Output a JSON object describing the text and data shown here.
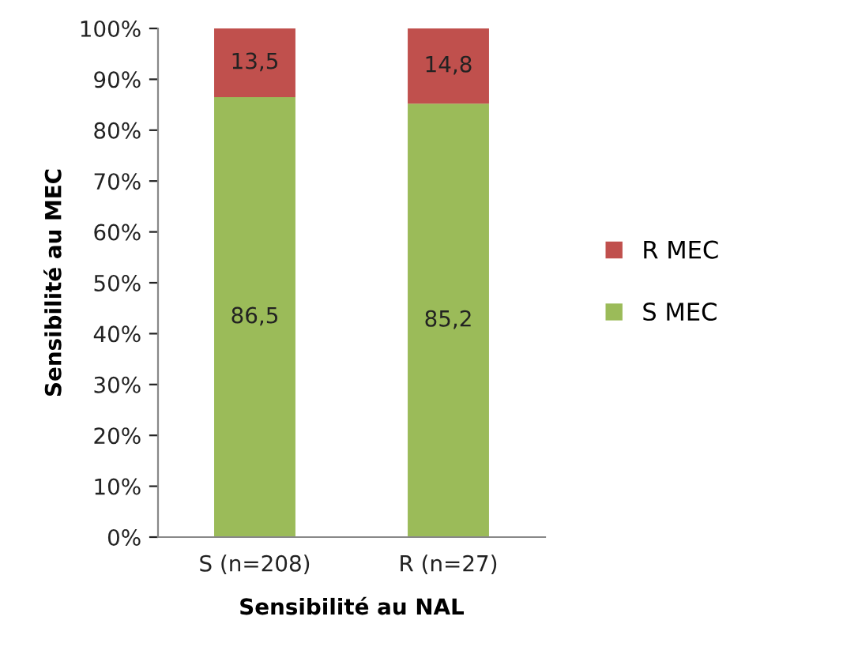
{
  "chart_data": {
    "type": "bar",
    "stacked": true,
    "xlabel": "Sensibilité au NAL",
    "ylabel": "Sensibilité au MEC",
    "categories": [
      "S (n=208)",
      "R (n=27)"
    ],
    "series": [
      {
        "name": "S MEC",
        "color": "#9bbb59",
        "values": [
          86.5,
          85.2
        ],
        "value_labels": [
          "86,5",
          "85,2"
        ]
      },
      {
        "name": "R MEC",
        "color": "#c0504d",
        "values": [
          13.5,
          14.8
        ],
        "value_labels": [
          "13,5",
          "14,8"
        ]
      }
    ],
    "ylim": [
      0,
      100
    ],
    "yticks": [
      {
        "value": 0,
        "label": "0%"
      },
      {
        "value": 10,
        "label": "10%"
      },
      {
        "value": 20,
        "label": "20%"
      },
      {
        "value": 30,
        "label": "30%"
      },
      {
        "value": 40,
        "label": "40%"
      },
      {
        "value": 50,
        "label": "50%"
      },
      {
        "value": 60,
        "label": "60%"
      },
      {
        "value": 70,
        "label": "70%"
      },
      {
        "value": 80,
        "label": "80%"
      },
      {
        "value": 90,
        "label": "90%"
      },
      {
        "value": 100,
        "label": "100%"
      }
    ],
    "grid": false,
    "legend": "right"
  }
}
